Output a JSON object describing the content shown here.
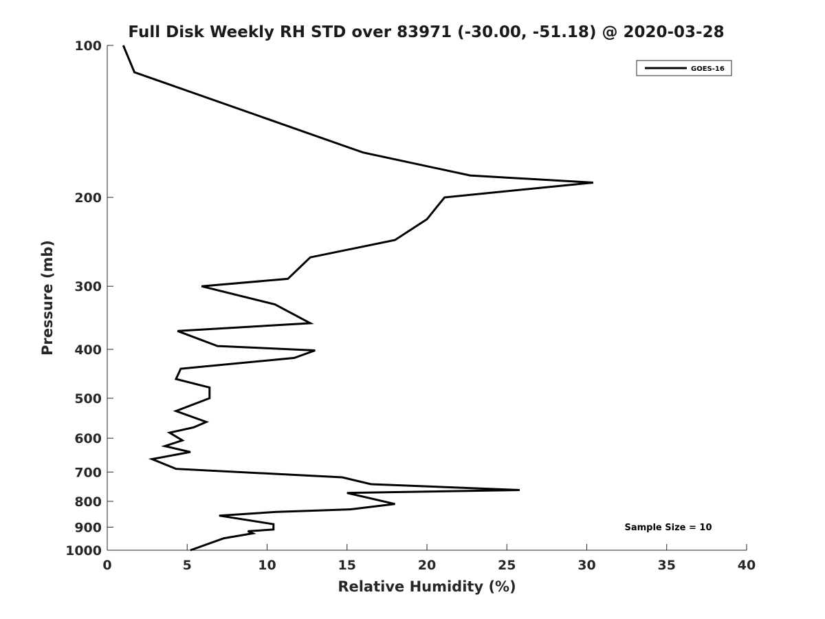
{
  "chart_data": {
    "type": "line",
    "title": "Full Disk Weekly RH STD over 83971 (-30.00, -51.18) @ 2020-03-28",
    "xlabel": "Relative Humidity (%)",
    "ylabel": "Pressure (mb)",
    "xlim": [
      0,
      40
    ],
    "ylim": [
      1000,
      100
    ],
    "y_scale": "log",
    "grid": false,
    "legend_position": "top-right",
    "x_ticks": [
      "0",
      "5",
      "10",
      "15",
      "20",
      "25",
      "30",
      "35",
      "40"
    ],
    "y_ticks": [
      "100",
      "200",
      "300",
      "400",
      "500",
      "600",
      "700",
      "800",
      "900",
      "1000"
    ],
    "annotation": "Sample Size = 10",
    "series": [
      {
        "name": "GOES-16",
        "color": "#000000",
        "x": [
          1.0,
          1.7,
          16.0,
          22.7,
          30.4,
          21.1,
          20.0,
          18.0,
          12.7,
          11.3,
          5.9,
          10.5,
          12.7,
          4.4,
          6.9,
          13.0,
          11.7,
          4.6,
          4.3,
          6.4,
          6.4,
          4.3,
          6.2,
          5.4,
          3.9,
          4.7,
          3.6,
          5.2,
          2.8,
          4.3,
          10.5,
          14.7,
          16.5,
          25.8,
          15.0,
          18.0,
          15.2,
          10.5,
          7.0,
          10.4,
          10.4,
          8.8,
          9.1,
          7.3,
          5.2
        ],
        "y": [
          100,
          113,
          163,
          181,
          187,
          200,
          221,
          243,
          263,
          290,
          300,
          326,
          355,
          368,
          394,
          402,
          416,
          437,
          458,
          476,
          500,
          530,
          557,
          571,
          585,
          606,
          622,
          639,
          660,
          690,
          706,
          717,
          740,
          760,
          770,
          810,
          830,
          840,
          854,
          888,
          910,
          917,
          926,
          947,
          1000
        ]
      }
    ]
  }
}
